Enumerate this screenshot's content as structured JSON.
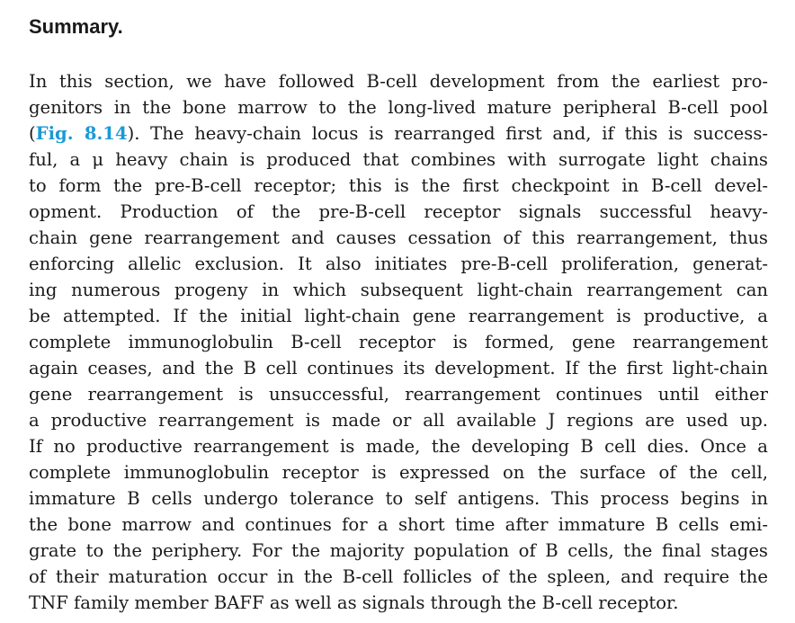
{
  "heading": "Summary.",
  "paragraph": {
    "line_1": "In this section, we have followed B-cell development from the earliest pro-",
    "line_2": "genitors in the bone marrow to the long-lived mature peripheral B-cell pool",
    "line_3_open": "(",
    "figure_ref": "Fig. 8.14",
    "line_3_rest": "). The heavy-chain locus is rearranged first and, if this is success-",
    "line_4": "ful, a μ heavy chain is produced that combines with surrogate light chains",
    "line_5": "to form the pre-B-cell receptor; this is the first checkpoint in B-cell devel-",
    "line_6": "opment. Production of the pre-B-cell receptor signals successful heavy-",
    "line_7": "chain gene rearrangement and causes cessation of this rearrangement, thus",
    "line_8": "enforcing allelic exclusion. It also initiates pre-B-cell proliferation, generat-",
    "line_9": "ing numerous progeny in which subsequent light-chain rearrangement can",
    "line_10": "be attempted. If the initial light-chain gene rearrangement is productive, a",
    "line_11": "complete immunoglobulin B-cell receptor is formed, gene rearrangement",
    "line_12": "again ceases, and the B cell continues its development. If the first light-chain",
    "line_13": "gene rearrangement is unsuccessful, rearrangement continues until either",
    "line_14": "a productive rearrangement is made or all available J regions are used up.",
    "line_15": "If no productive rearrangement is made, the developing B cell dies. Once a",
    "line_16": "complete immunoglobulin receptor is expressed on the surface of the cell,",
    "line_17": "immature B cells undergo tolerance to self antigens. This process begins in",
    "line_18": "the bone marrow and continues for a short time after immature B cells emi-",
    "line_19": "grate to the periphery. For the majority population of B cells, the final stages",
    "line_20": "of their maturation occur in the B-cell follicles of the spleen, and require the",
    "line_21": "TNF family member BAFF as well as signals through the B-cell receptor."
  },
  "colors": {
    "text": "#1a1a1a",
    "link": "#1a9ad6",
    "background": "#ffffff"
  }
}
